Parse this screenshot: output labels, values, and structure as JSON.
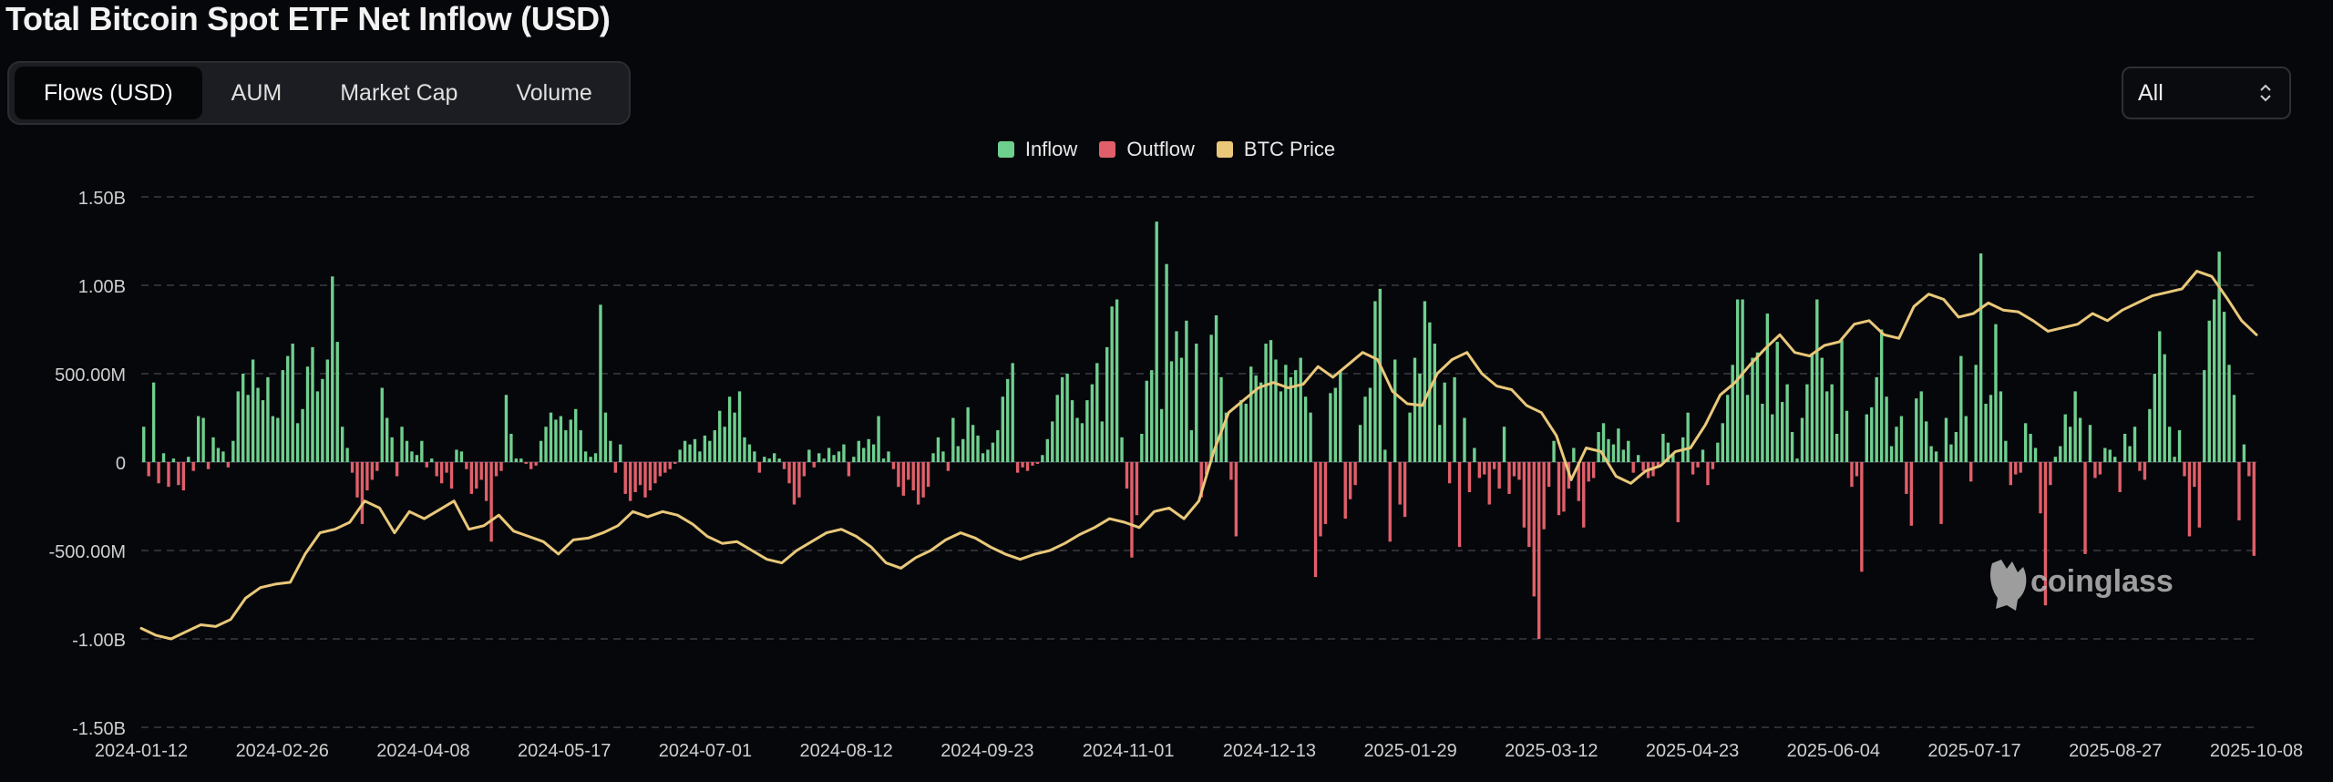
{
  "title": "Total Bitcoin Spot ETF Net Inflow (USD)",
  "tabs": [
    {
      "label": "Flows (USD)",
      "active": true
    },
    {
      "label": "AUM",
      "active": false
    },
    {
      "label": "Market Cap",
      "active": false
    },
    {
      "label": "Volume",
      "active": false
    }
  ],
  "range_select": {
    "value": "All"
  },
  "legend": [
    {
      "label": "Inflow",
      "color": "#6fcf8e"
    },
    {
      "label": "Outflow",
      "color": "#e15f6a"
    },
    {
      "label": "BTC Price",
      "color": "#e9c87a"
    }
  ],
  "watermark": "coinglass",
  "chart_data": {
    "type": "bar",
    "title": "Total Bitcoin Spot ETF Net Inflow (USD)",
    "x_tick_labels": [
      "2024-01-12",
      "2024-02-26",
      "2024-04-08",
      "2024-05-17",
      "2024-07-01",
      "2024-08-12",
      "2024-09-23",
      "2024-11-01",
      "2024-12-13",
      "2025-01-29",
      "2025-03-12",
      "2025-04-23",
      "2025-06-04",
      "2025-07-17",
      "2025-08-27",
      "2025-10-08"
    ],
    "y_tick_labels": [
      "1.50B",
      "1.00B",
      "500.00M",
      "0",
      "-500.00M",
      "-1.00B",
      "-1.50B"
    ],
    "ylim": [
      -1.5,
      1.5
    ],
    "y_unit": "B USD",
    "grid": true,
    "legend_position": "top-center",
    "series": [
      {
        "name": "Inflow / Outflow",
        "type": "bar",
        "values": [
          0.2,
          -0.08,
          0.45,
          -0.12,
          0.05,
          -0.14,
          0.02,
          -0.13,
          -0.16,
          0.03,
          -0.05,
          0.26,
          0.25,
          -0.04,
          0.14,
          0.08,
          0.06,
          -0.03,
          0.12,
          0.4,
          0.5,
          0.38,
          0.58,
          0.42,
          0.35,
          0.48,
          0.26,
          0.25,
          0.52,
          0.6,
          0.67,
          0.22,
          0.3,
          0.54,
          0.65,
          0.4,
          0.47,
          0.58,
          1.05,
          0.68,
          0.2,
          0.08,
          -0.06,
          -0.2,
          -0.35,
          -0.16,
          -0.1,
          -0.05,
          0.42,
          0.25,
          0.14,
          -0.08,
          0.2,
          0.12,
          0.06,
          0.04,
          0.12,
          -0.03,
          0.02,
          -0.08,
          -0.12,
          -0.06,
          -0.15,
          0.07,
          0.06,
          -0.04,
          -0.18,
          -0.15,
          -0.1,
          -0.22,
          -0.45,
          -0.08,
          -0.05,
          0.38,
          0.16,
          0.02,
          0.02,
          -0.01,
          -0.04,
          -0.02,
          0.12,
          0.2,
          0.28,
          0.24,
          0.26,
          0.18,
          0.24,
          0.3,
          0.18,
          0.06,
          0.03,
          0.05,
          0.89,
          0.28,
          0.12,
          -0.06,
          0.1,
          -0.18,
          -0.22,
          -0.17,
          -0.13,
          -0.2,
          -0.16,
          -0.12,
          -0.08,
          -0.06,
          -0.04,
          -0.01,
          0.07,
          0.12,
          0.1,
          0.13,
          0.06,
          0.15,
          0.12,
          0.18,
          0.29,
          0.2,
          0.37,
          0.28,
          0.4,
          0.14,
          0.1,
          0.06,
          -0.06,
          0.03,
          0.02,
          0.05,
          0.02,
          -0.04,
          -0.12,
          -0.24,
          -0.2,
          -0.08,
          0.07,
          -0.03,
          0.05,
          0.02,
          0.08,
          0.04,
          0.06,
          0.1,
          -0.08,
          0.03,
          0.12,
          0.08,
          0.13,
          0.1,
          0.26,
          0.02,
          0.06,
          -0.04,
          -0.14,
          -0.19,
          -0.1,
          -0.16,
          -0.24,
          -0.2,
          -0.14,
          0.05,
          0.14,
          0.06,
          -0.05,
          0.25,
          0.09,
          0.13,
          0.31,
          0.21,
          0.15,
          0.05,
          0.07,
          0.11,
          0.18,
          0.37,
          0.47,
          0.56,
          -0.06,
          -0.03,
          -0.05,
          -0.02,
          -0.01,
          0.04,
          0.13,
          0.23,
          0.38,
          0.48,
          0.5,
          0.35,
          0.25,
          0.22,
          0.35,
          0.44,
          0.56,
          0.23,
          0.65,
          0.88,
          0.92,
          0.14,
          -0.15,
          -0.54,
          -0.3,
          0.16,
          0.46,
          0.52,
          1.36,
          0.3,
          1.12,
          0.57,
          0.74,
          0.59,
          0.8,
          0.18,
          0.67,
          -0.2,
          -0.07,
          0.72,
          0.83,
          0.48,
          0.28,
          -0.1,
          -0.42,
          0.35,
          0.33,
          0.54,
          0.49,
          0.45,
          0.67,
          0.69,
          0.58,
          0.4,
          0.55,
          0.48,
          0.52,
          0.59,
          0.37,
          0.28,
          -0.65,
          -0.42,
          -0.35,
          0.39,
          0.42,
          0.52,
          -0.32,
          -0.21,
          -0.13,
          0.21,
          0.37,
          0.42,
          0.91,
          0.98,
          0.07,
          -0.45,
          0.58,
          -0.24,
          -0.31,
          0.28,
          0.59,
          0.5,
          0.91,
          0.79,
          0.67,
          0.21,
          0.45,
          -0.12,
          0.48,
          -0.48,
          0.25,
          -0.17,
          0.08,
          -0.09,
          -0.07,
          -0.24,
          -0.04,
          -0.15,
          0.2,
          -0.18,
          -0.08,
          -0.1,
          -0.37,
          -0.48,
          -0.76,
          -1.0,
          -0.38,
          -0.14,
          0.12,
          -0.3,
          -0.28,
          -0.15,
          0.08,
          -0.22,
          -0.37,
          -0.11,
          -0.09,
          0.17,
          0.22,
          0.13,
          0.1,
          0.19,
          0.07,
          0.12,
          -0.06,
          0.04,
          -0.05,
          -0.09,
          -0.08,
          -0.03,
          0.16,
          0.11,
          0.05,
          -0.34,
          0.14,
          0.28,
          -0.07,
          -0.03,
          0.07,
          -0.13,
          -0.04,
          0.11,
          0.22,
          0.38,
          0.55,
          0.92,
          0.92,
          0.38,
          0.59,
          0.62,
          0.33,
          0.84,
          0.27,
          0.68,
          0.34,
          0.44,
          0.17,
          0.02,
          0.25,
          0.44,
          0.61,
          0.92,
          0.59,
          0.4,
          0.44,
          0.16,
          0.69,
          0.29,
          -0.14,
          -0.08,
          -0.62,
          0.27,
          0.31,
          0.48,
          0.75,
          0.37,
          0.09,
          0.2,
          0.26,
          -0.18,
          -0.36,
          0.36,
          0.4,
          0.23,
          0.09,
          0.06,
          -0.35,
          0.25,
          0.1,
          0.17,
          0.6,
          0.26,
          -0.11,
          0.55,
          1.18,
          0.33,
          0.38,
          0.78,
          0.4,
          0.12,
          -0.13,
          -0.07,
          -0.06,
          0.22,
          0.16,
          0.08,
          -0.29,
          -0.81,
          -0.13,
          0.03,
          0.09,
          0.27,
          0.2,
          0.4,
          0.25,
          -0.52,
          0.21,
          -0.09,
          -0.07,
          0.08,
          0.07,
          0.03,
          -0.17,
          0.16,
          0.09,
          0.2,
          -0.05,
          -0.1,
          0.3,
          0.5,
          0.74,
          0.61,
          0.2,
          0.03,
          0.18,
          -0.08,
          -0.42,
          -0.14,
          -0.37,
          0.52,
          0.8,
          0.92,
          1.19,
          0.85,
          0.55,
          0.38,
          -0.33,
          0.1,
          -0.08,
          -0.53
        ]
      },
      {
        "name": "BTC Price",
        "type": "line",
        "color": "#e9c87a",
        "values": [
          -0.94,
          -0.98,
          -1.0,
          -0.96,
          -0.92,
          -0.93,
          -0.89,
          -0.77,
          -0.71,
          -0.69,
          -0.68,
          -0.52,
          -0.4,
          -0.38,
          -0.34,
          -0.22,
          -0.26,
          -0.4,
          -0.28,
          -0.32,
          -0.27,
          -0.22,
          -0.38,
          -0.36,
          -0.3,
          -0.39,
          -0.42,
          -0.45,
          -0.52,
          -0.44,
          -0.43,
          -0.4,
          -0.36,
          -0.28,
          -0.31,
          -0.28,
          -0.3,
          -0.35,
          -0.42,
          -0.46,
          -0.45,
          -0.5,
          -0.55,
          -0.57,
          -0.5,
          -0.45,
          -0.4,
          -0.38,
          -0.42,
          -0.48,
          -0.57,
          -0.6,
          -0.54,
          -0.5,
          -0.44,
          -0.4,
          -0.43,
          -0.48,
          -0.52,
          -0.55,
          -0.52,
          -0.5,
          -0.46,
          -0.41,
          -0.37,
          -0.32,
          -0.34,
          -0.37,
          -0.28,
          -0.26,
          -0.32,
          -0.22,
          0.06,
          0.28,
          0.35,
          0.42,
          0.45,
          0.42,
          0.44,
          0.54,
          0.48,
          0.55,
          0.62,
          0.58,
          0.4,
          0.33,
          0.32,
          0.5,
          0.58,
          0.62,
          0.5,
          0.43,
          0.41,
          0.32,
          0.28,
          0.15,
          -0.1,
          0.08,
          0.06,
          -0.08,
          -0.12,
          -0.05,
          -0.02,
          0.06,
          0.08,
          0.21,
          0.38,
          0.45,
          0.55,
          0.64,
          0.72,
          0.62,
          0.6,
          0.66,
          0.68,
          0.78,
          0.8,
          0.72,
          0.7,
          0.88,
          0.95,
          0.92,
          0.82,
          0.84,
          0.9,
          0.86,
          0.85,
          0.8,
          0.74,
          0.76,
          0.78,
          0.84,
          0.8,
          0.86,
          0.9,
          0.94,
          0.96,
          0.98,
          1.08,
          1.05,
          0.93,
          0.8,
          0.72
        ]
      }
    ]
  }
}
